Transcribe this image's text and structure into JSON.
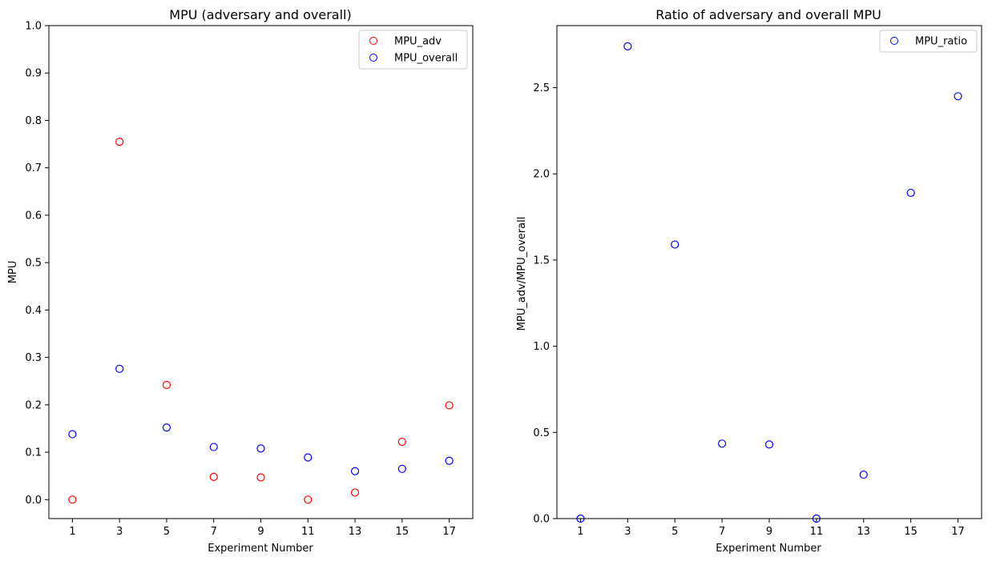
{
  "chart_data": [
    {
      "type": "scatter",
      "title": "MPU (adversary and overall)",
      "xlabel": "Experiment Number",
      "ylabel": "MPU",
      "xlim": [
        0,
        18
      ],
      "ylim": [
        -0.04,
        1.0
      ],
      "x_ticks": [
        1,
        3,
        5,
        7,
        9,
        11,
        13,
        15,
        17
      ],
      "y_ticks": [
        0.0,
        0.1,
        0.2,
        0.3,
        0.4,
        0.5,
        0.6,
        0.7,
        0.8,
        0.9,
        1.0
      ],
      "y_tick_labels": [
        "0.0",
        "0.1",
        "0.2",
        "0.3",
        "0.4",
        "0.5",
        "0.6",
        "0.7",
        "0.8",
        "0.9",
        "1.0"
      ],
      "grid": false,
      "legend": "top-right",
      "series": [
        {
          "name": "MPU_adv",
          "color": "#ff0000",
          "marker": "open-circle",
          "x": [
            1,
            3,
            5,
            7,
            9,
            11,
            13,
            15,
            17
          ],
          "y": [
            0.0,
            0.755,
            0.242,
            0.048,
            0.047,
            0.0,
            0.015,
            0.122,
            0.199
          ]
        },
        {
          "name": "MPU_overall",
          "color": "#0000ff",
          "marker": "open-circle",
          "x": [
            1,
            3,
            5,
            7,
            9,
            11,
            13,
            15,
            17
          ],
          "y": [
            0.138,
            0.276,
            0.152,
            0.111,
            0.108,
            0.089,
            0.06,
            0.065,
            0.082
          ]
        }
      ]
    },
    {
      "type": "scatter",
      "title": "Ratio of adversary and overall MPU",
      "xlabel": "Experiment Number",
      "ylabel": "MPU_adv/MPU_overall",
      "xlim": [
        0,
        18
      ],
      "ylim": [
        0,
        2.86
      ],
      "x_ticks": [
        1,
        3,
        5,
        7,
        9,
        11,
        13,
        15,
        17
      ],
      "y_ticks": [
        0.0,
        0.5,
        1.0,
        1.5,
        2.0,
        2.5
      ],
      "y_tick_labels": [
        "0.0",
        "0.5",
        "1.0",
        "1.5",
        "2.0",
        "2.5"
      ],
      "grid": false,
      "legend": "top-right",
      "series": [
        {
          "name": "MPU_ratio",
          "color": "#0000ff",
          "marker": "open-circle",
          "x": [
            1,
            3,
            5,
            7,
            9,
            11,
            13,
            15,
            17
          ],
          "y": [
            0.0,
            2.74,
            1.59,
            0.435,
            0.43,
            0.0,
            0.255,
            1.89,
            2.45
          ]
        }
      ]
    }
  ]
}
